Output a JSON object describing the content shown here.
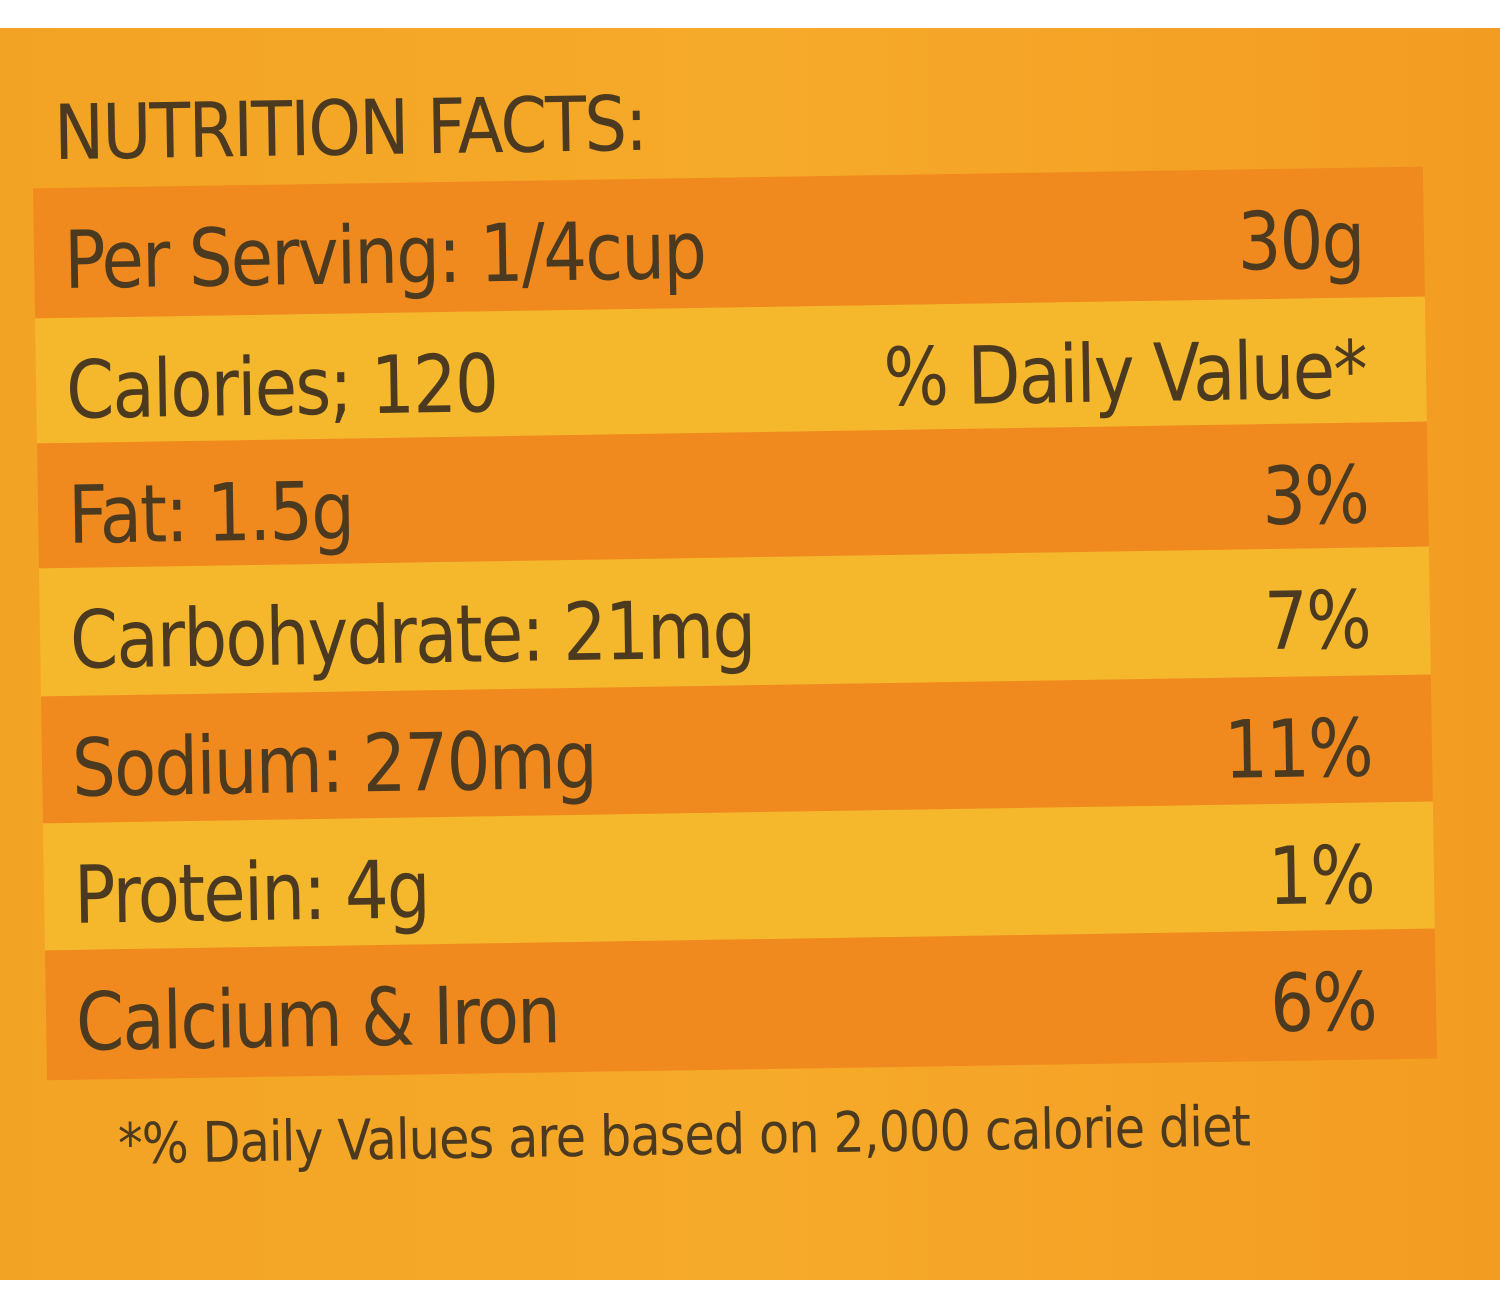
{
  "title": "NUTRITION FACTS:",
  "colors": {
    "band_dark": "#f08a1e",
    "band_light": "#f5b82c",
    "text": "#4b3a1f"
  },
  "rows": [
    {
      "label": "Per Serving: 1/4cup",
      "value": "30g"
    },
    {
      "label": "Calories; 120",
      "value": "% Daily Value*"
    },
    {
      "label": "Fat: 1.5g",
      "value": "3%"
    },
    {
      "label": "Carbohydrate: 21mg",
      "value": "7%"
    },
    {
      "label": "Sodium: 270mg",
      "value": "11%"
    },
    {
      "label": "Protein: 4g",
      "value": "1%"
    },
    {
      "label": "Calcium & Iron",
      "value": "6%"
    }
  ],
  "footnote": "*% Daily Values are based on 2,000 calorie diet"
}
